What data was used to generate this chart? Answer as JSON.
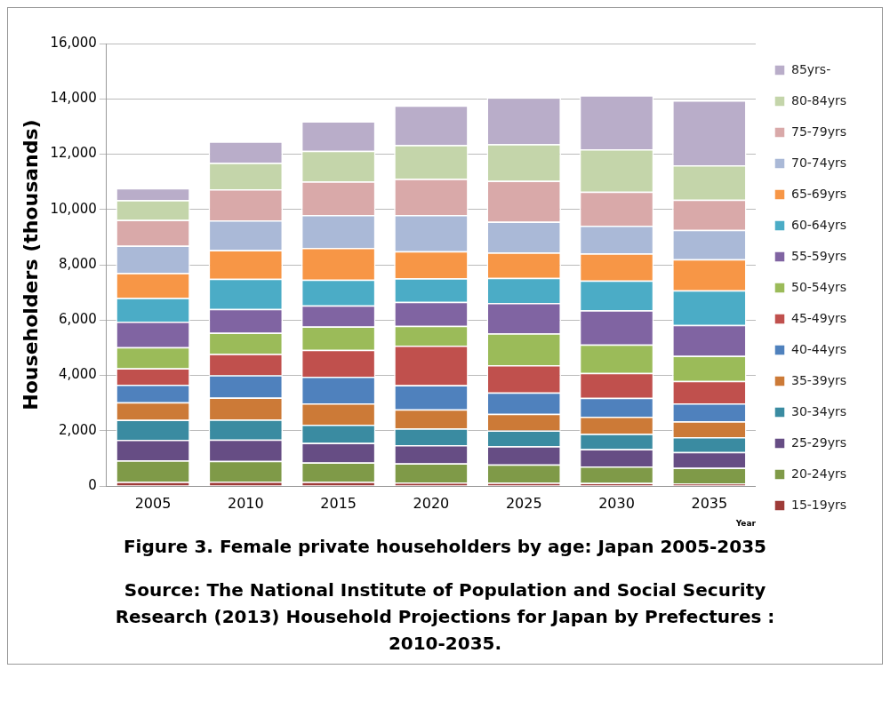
{
  "chart_data": {
    "type": "bar",
    "stacked": true,
    "title": "Figure 3.  Female private householders by age: Japan 2005-2035",
    "xlabel": "Year",
    "ylabel": "Householders (thousands)",
    "annotations": [
      "Source: The National Institute of Population and Social Security Research (2013) Household Projections for Japan by Prefectures : 2010-2035."
    ],
    "categories": [
      "2005",
      "2010",
      "2015",
      "2020",
      "2025",
      "2030",
      "2035"
    ],
    "ylim": [
      0,
      16000
    ],
    "yticks": [
      {
        "value": 0,
        "label": "0"
      },
      {
        "value": 2000,
        "label": "2,000"
      },
      {
        "value": 4000,
        "label": "4,000"
      },
      {
        "value": 6000,
        "label": "6,000"
      },
      {
        "value": 8000,
        "label": "8,000"
      },
      {
        "value": 10000,
        "label": "10,000"
      },
      {
        "value": 12000,
        "label": "12,000"
      },
      {
        "value": 14000,
        "label": "14,000"
      },
      {
        "value": 16000,
        "label": "16,000"
      }
    ],
    "grid": "y",
    "legend": "right",
    "series": [
      {
        "name": "15-19yrs",
        "color": "#9e3b38",
        "values": [
          150,
          160,
          150,
          130,
          120,
          110,
          90
        ]
      },
      {
        "name": "20-24yrs",
        "color": "#7f9a48",
        "values": [
          770,
          750,
          700,
          690,
          660,
          600,
          570
        ]
      },
      {
        "name": "25-29yrs",
        "color": "#664d84",
        "values": [
          750,
          770,
          710,
          660,
          660,
          620,
          570
        ]
      },
      {
        "name": "30-34yrs",
        "color": "#3a8ba1",
        "values": [
          720,
          720,
          660,
          600,
          570,
          560,
          540
        ]
      },
      {
        "name": "35-39yrs",
        "color": "#cc7a37",
        "values": [
          640,
          800,
          770,
          690,
          600,
          620,
          570
        ]
      },
      {
        "name": "40-44yrs",
        "color": "#4f81bd",
        "values": [
          630,
          810,
          960,
          880,
          770,
          680,
          650
        ]
      },
      {
        "name": "45-49yrs",
        "color": "#c0504d",
        "values": [
          600,
          770,
          970,
          1430,
          990,
          900,
          810
        ]
      },
      {
        "name": "50-54yrs",
        "color": "#9bbb59",
        "values": [
          760,
          760,
          850,
          710,
          1150,
          1030,
          910
        ]
      },
      {
        "name": "55-59yrs",
        "color": "#8064a2",
        "values": [
          920,
          860,
          760,
          870,
          1100,
          1230,
          1110
        ]
      },
      {
        "name": "60-64yrs",
        "color": "#4bacc6",
        "values": [
          860,
          1090,
          930,
          850,
          910,
          1080,
          1260
        ]
      },
      {
        "name": "65-69yrs",
        "color": "#f79646",
        "values": [
          900,
          1040,
          1150,
          980,
          910,
          980,
          1120
        ]
      },
      {
        "name": "70-74yrs",
        "color": "#aab9d7",
        "values": [
          990,
          1080,
          1190,
          1310,
          1120,
          1000,
          1060
        ]
      },
      {
        "name": "75-79yrs",
        "color": "#d9a9a9",
        "values": [
          930,
          1120,
          1210,
          1310,
          1480,
          1230,
          1090
        ]
      },
      {
        "name": "80-84yrs",
        "color": "#c4d5aa",
        "values": [
          720,
          960,
          1110,
          1220,
          1320,
          1540,
          1250
        ]
      },
      {
        "name": "85yrs-",
        "color": "#b9adc9",
        "values": [
          430,
          770,
          1070,
          1430,
          1690,
          1950,
          2340
        ]
      }
    ]
  }
}
